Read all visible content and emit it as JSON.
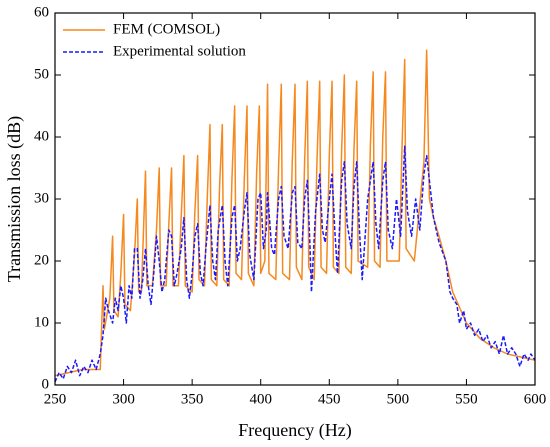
{
  "chart_data": {
    "type": "line",
    "xlabel": "Frequency (Hz)",
    "ylabel": "Transmission loss (dB)",
    "xlim": [
      250,
      600
    ],
    "xticks": [
      250,
      300,
      350,
      400,
      450,
      500,
      550,
      600
    ],
    "ylim": [
      0,
      60
    ],
    "yticks": [
      0,
      10,
      20,
      30,
      40,
      50,
      60
    ],
    "legend": "top-left",
    "series": [
      {
        "name": "FEM (COMSOL)",
        "color": "#f5891f",
        "style": "solid",
        "x": [
          250,
          260,
          270,
          283,
          285,
          286,
          290,
          292,
          293,
          296,
          298,
          300,
          301,
          305,
          308,
          310,
          311,
          313,
          316,
          317,
          321,
          324,
          326,
          327,
          331,
          333,
          335,
          336,
          340,
          342,
          344,
          345,
          350,
          352,
          354,
          355,
          359,
          361,
          363,
          364,
          368,
          370,
          372,
          373,
          377,
          379,
          381,
          382,
          386,
          388,
          390,
          391,
          395,
          397,
          399,
          400,
          403,
          405,
          406,
          411,
          413,
          415,
          416,
          421,
          423,
          425,
          426,
          430,
          432,
          434,
          435,
          439,
          441,
          443,
          444,
          448,
          450,
          452,
          453,
          457,
          459,
          461,
          462,
          466,
          468,
          470,
          471,
          478,
          480,
          482,
          483,
          487,
          489,
          491,
          492,
          501,
          503,
          505,
          506,
          512,
          519,
          521,
          523,
          526,
          530,
          535,
          540,
          550,
          560,
          570,
          580,
          590,
          600
        ],
        "values": [
          1.5,
          2,
          2.5,
          2.5,
          16,
          9,
          14,
          24,
          12,
          11,
          18,
          27.5,
          13,
          12,
          21,
          30,
          15,
          15,
          34.5,
          16,
          16,
          25,
          35,
          16,
          16,
          26,
          35,
          16,
          16,
          27,
          37,
          16,
          15,
          28,
          37,
          17,
          16,
          30,
          42,
          17,
          16,
          32,
          42,
          17,
          16,
          33,
          45,
          18,
          17,
          33,
          45,
          18,
          16,
          34,
          45,
          18,
          20,
          48.5,
          18,
          17,
          35,
          48.5,
          18,
          17,
          36,
          48.5,
          19,
          17,
          36,
          49,
          19,
          17,
          36,
          49,
          19,
          18,
          37,
          49,
          19,
          18,
          38,
          50,
          19,
          18,
          38,
          49,
          20,
          19,
          39,
          50.5,
          20,
          19,
          40,
          50.5,
          20,
          20,
          38,
          52.5,
          22,
          20,
          36,
          54,
          30,
          27,
          24,
          20,
          15,
          10,
          7.5,
          6,
          5,
          4.5,
          4
        ]
      },
      {
        "name": "Experimental solution",
        "color": "#1a1aff",
        "style": "dashed",
        "x": [
          250,
          253,
          256,
          259,
          262,
          265,
          268,
          271,
          274,
          277,
          280,
          283,
          285,
          287,
          289,
          292,
          294,
          296,
          298,
          300,
          302,
          304,
          306,
          308,
          310,
          312,
          314,
          316,
          318,
          320,
          322,
          324,
          326,
          328,
          330,
          333,
          335,
          337,
          339,
          342,
          344,
          346,
          348,
          350,
          352,
          354,
          356,
          358,
          360,
          363,
          365,
          367,
          369,
          372,
          374,
          376,
          379,
          381,
          383,
          385,
          388,
          390,
          392,
          395,
          398,
          400,
          402,
          404,
          405,
          408,
          410,
          413,
          415,
          417,
          420,
          423,
          425,
          427,
          430,
          432,
          434,
          436,
          437,
          440,
          443,
          445,
          447,
          450,
          452,
          454,
          456,
          459,
          461,
          463,
          466,
          468,
          470,
          472,
          474,
          478,
          482,
          484,
          486,
          489,
          491,
          493,
          496,
          499,
          502,
          505,
          507,
          510,
          513,
          516,
          519,
          521,
          523,
          526,
          530,
          535,
          538,
          540,
          543,
          545,
          548,
          550,
          553,
          556,
          559,
          562,
          565,
          568,
          571,
          574,
          577,
          580,
          583,
          586,
          589,
          592,
          595,
          597,
          600
        ],
        "values": [
          0.5,
          2,
          1,
          3,
          2,
          4,
          1.5,
          3,
          2,
          4,
          2.5,
          5,
          8,
          14,
          12,
          10,
          14,
          12,
          16,
          14,
          10,
          16,
          14,
          22,
          22,
          14,
          17,
          22,
          16,
          13,
          18,
          24,
          20,
          15,
          17,
          25,
          24,
          16,
          18,
          22,
          27,
          17,
          14,
          18,
          24,
          26,
          18,
          16,
          22,
          29,
          20,
          17,
          25,
          29,
          20,
          16,
          27,
          29,
          20,
          22,
          28,
          31,
          21,
          17,
          30,
          31,
          22,
          25,
          31,
          22,
          21,
          30,
          32,
          24,
          22,
          31,
          32,
          23,
          22,
          30,
          33,
          22,
          15,
          28,
          34,
          25,
          23,
          30,
          34,
          25,
          18,
          33,
          36,
          26,
          22,
          32,
          36,
          25,
          17,
          30,
          36,
          26,
          22,
          33,
          36,
          25,
          22,
          30,
          24,
          38.5,
          28,
          24,
          30,
          25,
          34,
          37,
          33,
          27,
          23,
          20,
          15,
          14,
          13,
          10,
          12,
          9,
          10,
          8,
          9,
          7,
          8,
          6,
          7,
          5,
          8,
          5,
          6,
          5,
          3,
          5,
          4,
          5,
          4
        ]
      }
    ]
  }
}
